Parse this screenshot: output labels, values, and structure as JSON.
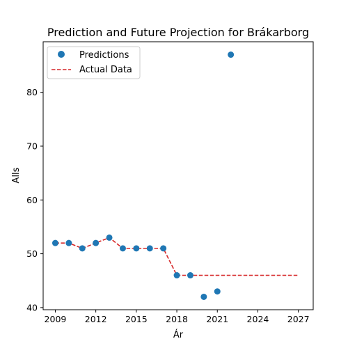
{
  "chart_data": {
    "type": "scatter",
    "title": "Prediction and Future Projection for Brákarborg",
    "xlabel": "Ár",
    "ylabel": "Alls",
    "xlim": [
      2008.1,
      2028.1
    ],
    "ylim": [
      39.6,
      89.4
    ],
    "xticks": [
      2009,
      2012,
      2015,
      2018,
      2021,
      2024,
      2027
    ],
    "yticks": [
      40,
      50,
      60,
      70,
      80
    ],
    "grid": false,
    "legend": "top-left",
    "series": [
      {
        "name": "Predictions",
        "kind": "scatter",
        "color": "#1f77b4",
        "x": [
          2009,
          2010,
          2011,
          2012,
          2013,
          2014,
          2015,
          2016,
          2017,
          2018,
          2019,
          2020,
          2021,
          2022
        ],
        "y": [
          52,
          52,
          51,
          52,
          53,
          51,
          51,
          51,
          51,
          46,
          46,
          42,
          43,
          87
        ]
      },
      {
        "name": "Actual Data",
        "kind": "line",
        "style": "dashed",
        "color": "#d62728",
        "x": [
          2009,
          2010,
          2011,
          2012,
          2013,
          2014,
          2015,
          2016,
          2017,
          2018,
          2019,
          2020,
          2021,
          2022,
          2023,
          2024,
          2025,
          2026,
          2027
        ],
        "y": [
          52,
          52,
          51,
          52,
          53,
          51,
          51,
          51,
          51,
          46,
          46,
          46,
          46,
          46,
          46,
          46,
          46,
          46,
          46
        ]
      }
    ]
  }
}
